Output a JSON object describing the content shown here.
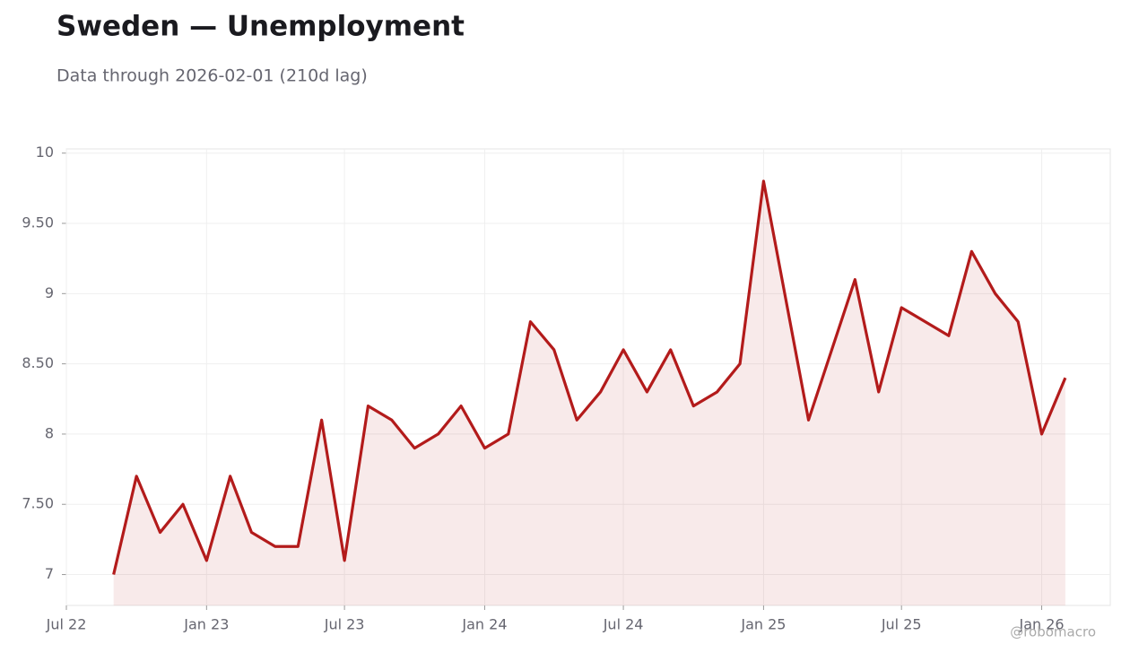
{
  "chart_data": {
    "type": "line",
    "title": "Sweden — Unemployment",
    "subtitle": "Data through 2026-02-01 (210d lag)",
    "watermark": "@robomacro",
    "x": [
      "2022-09-01",
      "2022-10-01",
      "2022-11-01",
      "2022-12-01",
      "2023-01-01",
      "2023-02-01",
      "2023-03-01",
      "2023-04-01",
      "2023-05-01",
      "2023-06-01",
      "2023-07-01",
      "2023-08-01",
      "2023-09-01",
      "2023-10-01",
      "2023-11-01",
      "2023-12-01",
      "2024-01-01",
      "2024-02-01",
      "2024-03-01",
      "2024-04-01",
      "2024-05-01",
      "2024-06-01",
      "2024-07-01",
      "2024-08-01",
      "2024-09-01",
      "2024-10-01",
      "2024-11-01",
      "2024-12-01",
      "2025-01-01",
      "2025-03-01",
      "2025-05-01",
      "2025-06-01",
      "2025-07-01",
      "2025-09-01",
      "2025-10-01",
      "2025-11-01",
      "2025-12-01",
      "2026-01-01",
      "2026-02-01"
    ],
    "series": [
      {
        "name": "Unemployment",
        "color": "#b31b1b",
        "values": [
          7.0,
          7.7,
          7.3,
          7.5,
          7.1,
          7.7,
          7.3,
          7.2,
          7.2,
          8.1,
          7.1,
          8.2,
          8.1,
          7.9,
          8.0,
          8.2,
          7.9,
          8.0,
          8.8,
          8.6,
          8.1,
          8.3,
          8.6,
          8.3,
          8.6,
          8.2,
          8.3,
          8.5,
          9.8,
          8.1,
          9.1,
          8.3,
          8.9,
          8.7,
          9.3,
          9.0,
          8.8,
          8.0,
          8.4
        ]
      }
    ],
    "xlim": [
      "2022-07-01",
      "2026-04-01"
    ],
    "xticks": [
      {
        "value": "2022-07-01",
        "label": "Jul 22"
      },
      {
        "value": "2023-01-01",
        "label": "Jan 23"
      },
      {
        "value": "2023-07-01",
        "label": "Jul 23"
      },
      {
        "value": "2024-01-01",
        "label": "Jan 24"
      },
      {
        "value": "2024-07-01",
        "label": "Jul 24"
      },
      {
        "value": "2025-01-01",
        "label": "Jan 25"
      },
      {
        "value": "2025-07-01",
        "label": "Jul 25"
      },
      {
        "value": "2026-01-01",
        "label": "Jan 26"
      }
    ],
    "ylim": [
      6.78,
      10.03
    ],
    "yticks": [
      7,
      {
        "value": 7.5,
        "label": "7.50"
      },
      8,
      {
        "value": 8.5,
        "label": "8.50"
      },
      9,
      {
        "value": 9.5,
        "label": "9.50"
      },
      10
    ],
    "grid": true
  }
}
